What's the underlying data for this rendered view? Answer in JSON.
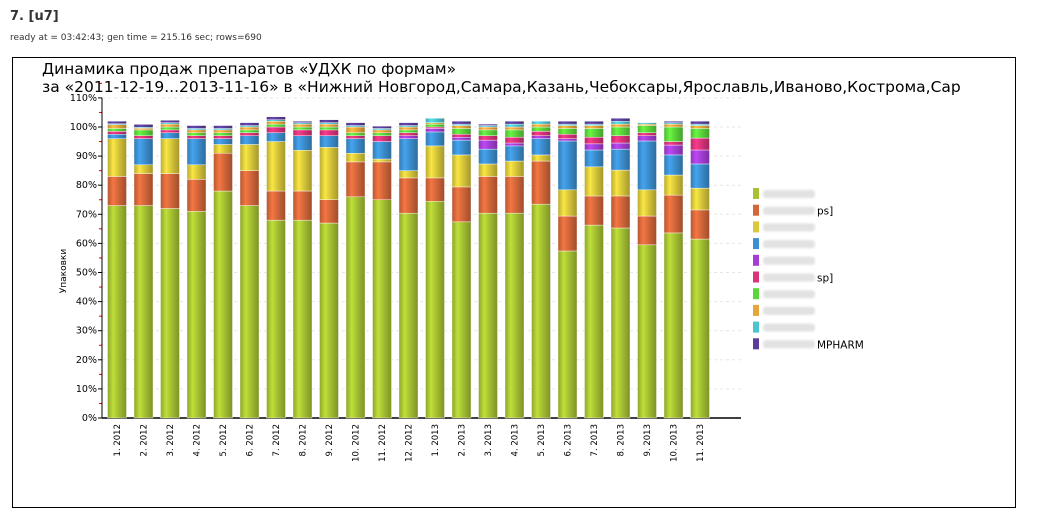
{
  "header": {
    "title": "7. [u7]",
    "meta": "ready at = 03:42:43; gen time = 215.16 sec; rows=690"
  },
  "chart_data": {
    "type": "bar",
    "stacked": true,
    "title_line1": "Динамика продаж препаратов «УДХК по формам»",
    "title_line2": "за «2011-12-19...2013-11-16» в «Нижний Новгород,Самара,Казань,Чебоксары,Ярославль,Иваново,Кострома,Сар",
    "ylabel": "Упаковки",
    "ylim": [
      0,
      110
    ],
    "yticks": [
      "0%",
      "10%",
      "20%",
      "30%",
      "40%",
      "50%",
      "60%",
      "70%",
      "80%",
      "90%",
      "100%",
      "110%"
    ],
    "grid": true,
    "legend_placement": "right",
    "categories": [
      "1. 2012",
      "2. 2012",
      "3. 2012",
      "4. 2012",
      "5. 2012",
      "6. 2012",
      "7. 2012",
      "8. 2012",
      "9. 2012",
      "10. 2012",
      "11. 2012",
      "12. 2012",
      "1. 2013",
      "2. 2013",
      "3. 2013",
      "4. 2013",
      "5. 2013",
      "6. 2013",
      "7. 2013",
      "8. 2013",
      "9. 2013",
      "10. 2013",
      "11. 2013"
    ],
    "series": [
      {
        "name": "",
        "color": "#a6c232",
        "values": [
          73,
          73,
          72,
          71,
          78,
          73,
          68,
          68,
          67,
          76,
          75,
          70.4,
          74.5,
          67.4,
          70.4,
          70.4,
          73.5,
          57.4,
          66.3,
          65.3,
          59.5,
          63.6,
          61.5
        ]
      },
      {
        "name": "ps]",
        "color": "#d4673a",
        "values": [
          10,
          11,
          12,
          11,
          13,
          12,
          10,
          10,
          8,
          12,
          13,
          12.1,
          8,
          12,
          12.6,
          12.6,
          14.8,
          12,
          10,
          11,
          9.9,
          13,
          10
        ]
      },
      {
        "name": "",
        "color": "#d9c83a",
        "values": [
          13,
          3,
          12,
          5,
          3,
          9,
          17,
          14,
          18,
          3,
          1,
          2.5,
          11,
          11,
          4.3,
          5.3,
          2.1,
          9,
          10,
          8.9,
          9,
          6.9,
          7.5
        ]
      },
      {
        "name": "",
        "color": "#3c8fd0",
        "values": [
          1.5,
          9,
          2,
          9,
          2,
          3,
          3,
          5,
          4,
          5,
          6,
          11,
          4.8,
          5.1,
          5.1,
          5.2,
          5.6,
          16.8,
          5.8,
          7.2,
          16.8,
          6.9,
          8.3
        ]
      },
      {
        "name": "",
        "color": "#a43ed6",
        "values": [
          0,
          0,
          0,
          0,
          0,
          0,
          0,
          0,
          0,
          0,
          0,
          1,
          1.2,
          1,
          3.1,
          1,
          1,
          0.8,
          2.1,
          2.1,
          1.8,
          3.4,
          4.8
        ]
      },
      {
        "name": "sp]",
        "color": "#d9337a",
        "values": [
          1,
          1,
          1,
          1,
          1,
          1,
          2,
          2,
          2,
          1,
          2,
          1,
          0.5,
          1,
          1.5,
          2,
          1.5,
          1.5,
          2.3,
          2.5,
          1,
          1.2,
          4.1
        ]
      },
      {
        "name": "",
        "color": "#5bd63a",
        "values": [
          1,
          2,
          1,
          1,
          1,
          1,
          1,
          1,
          1,
          1,
          1,
          1,
          1,
          2,
          2,
          2.5,
          1.5,
          2,
          3,
          3,
          2.5,
          5,
          3.3
        ]
      },
      {
        "name": "",
        "color": "#e8a53a",
        "values": [
          1.3,
          0.6,
          1,
          1,
          1,
          1,
          1,
          1,
          1,
          2,
          1,
          1,
          0.5,
          1,
          1,
          1,
          1,
          1,
          1,
          1,
          0.5,
          1,
          1
        ]
      },
      {
        "name": "",
        "color": "#4ac4d0",
        "values": [
          0.3,
          0.3,
          0.5,
          0.5,
          0.5,
          0.5,
          0.5,
          0.5,
          0.5,
          0.5,
          0.5,
          0.5,
          1.5,
          0.5,
          0.5,
          1,
          1,
          0.5,
          0.5,
          1,
          0.5,
          0.5,
          0.5
        ]
      },
      {
        "name": "MPHARM",
        "color": "#5a3d9a",
        "values": [
          0.9,
          1,
          0.8,
          1,
          1,
          1,
          1,
          0.5,
          1,
          1,
          0.8,
          1,
          0,
          1,
          0.5,
          1,
          0,
          1,
          1,
          1,
          0,
          0.5,
          1
        ]
      }
    ]
  }
}
